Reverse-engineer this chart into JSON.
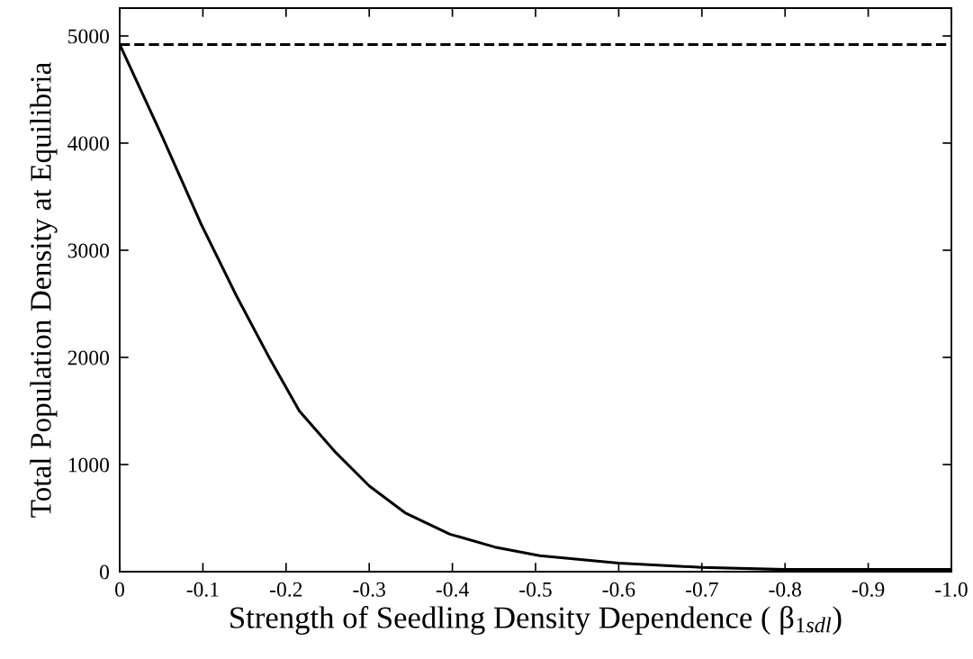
{
  "chart_data": {
    "type": "line",
    "xlabel": "Strength of Seedling Density Dependence ( β$_{1sdl}$)",
    "ylabel": "Total Population Density at Equilibria",
    "x": [
      0,
      -0.05,
      -0.0975,
      -0.14,
      -0.181,
      -0.216,
      -0.26,
      -0.3,
      -0.343,
      -0.397,
      -0.451,
      -0.505,
      -0.6,
      -0.7,
      -0.8,
      -0.9,
      -1.0
    ],
    "series": [
      {
        "color": "#000000",
        "values": [
          4920,
          4080,
          3250,
          2580,
          1980,
          1500,
          1110,
          800,
          550,
          350,
          230,
          150,
          80,
          40,
          20,
          20,
          20
        ]
      }
    ],
    "ref_lines": [
      {
        "axis": "y",
        "value": 4920,
        "color": "#000000",
        "line_style": "dashed"
      }
    ],
    "xlim": [
      0,
      -1.0
    ],
    "xticks": [
      0,
      {
        "value": -0.1,
        "label": "-0.1"
      },
      {
        "value": -0.2,
        "label": "-0.2"
      },
      {
        "value": -0.3,
        "label": "-0.3"
      },
      {
        "value": -0.4,
        "label": "-0.4"
      },
      {
        "value": -0.5,
        "label": "-0.5"
      },
      {
        "value": -0.6,
        "label": "-0.6"
      },
      {
        "value": -0.7,
        "label": "-0.7"
      },
      {
        "value": -0.8,
        "label": "-0.8"
      },
      {
        "value": -0.9,
        "label": "-0.9"
      },
      {
        "value": -1.0,
        "label": "-1.0"
      }
    ],
    "ylim": [
      0,
      5260
    ],
    "yticks": [
      0,
      1000,
      2000,
      3000,
      4000,
      5000
    ],
    "grid": false,
    "marker": "none",
    "line_style": "solid"
  }
}
